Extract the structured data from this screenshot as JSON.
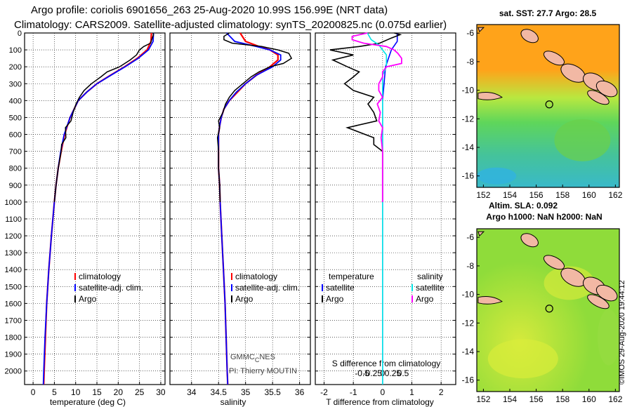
{
  "header": {
    "line1": "Argo profile: coriolis 6901656_263 25-Aug-2020 10.99S 156.99E (NRT data)",
    "line2": "Climatology: CARS2009. Satellite-adjusted climatology: synTS_20200825.nc (0.075d earlier)"
  },
  "credit": "©IMOS 29-Aug-2020 19:44:12",
  "colors": {
    "clim": "#ff0000",
    "sat": "#0000ff",
    "argo": "#000000",
    "sat_sal": "#00e5e5",
    "argo_sal": "#ff00ff"
  },
  "depth_axis": {
    "ticks": [
      0,
      100,
      200,
      300,
      400,
      500,
      600,
      700,
      800,
      900,
      1000,
      1100,
      1200,
      1300,
      1400,
      1500,
      1600,
      1700,
      1800,
      1900,
      2000
    ],
    "tick_labels": [
      "0",
      "100",
      "200",
      "300",
      "400",
      "500",
      "600",
      "700",
      "800",
      "900",
      "1000",
      "1100",
      "1200",
      "1300",
      "1400",
      "1500",
      "1600",
      "1700",
      "1800",
      "1900",
      "2000"
    ],
    "range": [
      0,
      2080
    ]
  },
  "chart_data": [
    {
      "type": "line",
      "id": "temperature",
      "xlabel": "temperature (deg C)",
      "xlim": [
        -2,
        31
      ],
      "xticks": [
        0,
        5,
        10,
        15,
        20,
        25,
        30
      ],
      "xtick_labels": [
        "0",
        "5",
        "10",
        "15",
        "20",
        "25",
        "30"
      ],
      "legend": {
        "placement": "lower-center",
        "entries": [
          "climatology",
          "satellite-adj. clim.",
          "Argo"
        ]
      },
      "series": [
        {
          "name": "climatology",
          "depth": [
            0,
            50,
            100,
            150,
            200,
            250,
            300,
            350,
            400,
            500,
            600,
            700,
            800,
            900,
            1000,
            1200,
            1400,
            1600,
            1800,
            2000,
            2080
          ],
          "values": [
            27.8,
            27.7,
            26.8,
            24.5,
            21.5,
            18.2,
            15.0,
            12.6,
            10.6,
            8.7,
            7.4,
            6.6,
            5.9,
            5.4,
            5.0,
            4.3,
            3.7,
            3.2,
            2.9,
            2.6,
            2.5
          ]
        },
        {
          "name": "satellite-adj. clim.",
          "depth": [
            0,
            50,
            100,
            150,
            200,
            250,
            300,
            350,
            400,
            500,
            600,
            700,
            800,
            900,
            1000,
            1200,
            1400,
            1600,
            1800,
            2000,
            2080
          ],
          "values": [
            28.3,
            28.2,
            27.1,
            24.7,
            21.6,
            18.3,
            15.0,
            12.6,
            10.6,
            8.7,
            7.3,
            6.5,
            5.9,
            5.4,
            5.0,
            4.3,
            3.7,
            3.2,
            2.8,
            2.5,
            2.4
          ]
        },
        {
          "name": "Argo",
          "depth": [
            0,
            10,
            30,
            60,
            80,
            100,
            130,
            160,
            200,
            230,
            260,
            300,
            340,
            380,
            420,
            470,
            520,
            560,
            620,
            660,
            700,
            800,
            900,
            1000
          ],
          "values": [
            28.2,
            28.3,
            28.0,
            27.6,
            26.0,
            25.0,
            24.3,
            22.8,
            20.3,
            17.4,
            15.9,
            13.7,
            12.0,
            10.9,
            10.1,
            9.4,
            8.9,
            7.6,
            7.7,
            6.7,
            6.6,
            5.9,
            5.4,
            5.0
          ]
        }
      ]
    },
    {
      "type": "line",
      "id": "salinity",
      "xlabel": "salinity",
      "xlim": [
        33.6,
        36.2
      ],
      "xticks": [
        34,
        34.5,
        35,
        35.5,
        36
      ],
      "xtick_labels": [
        "34",
        "34.5",
        "35",
        "35.5",
        "36"
      ],
      "legend": {
        "placement": "lower-center",
        "entries": [
          "climatology",
          "satellite-adj. clim.",
          "Argo"
        ]
      },
      "annotation_1": "GMMC",
      "annotation_sub": "C",
      "annotation_2": "NES",
      "annotation_pi": "PI: Thierry MOUTIN",
      "series": [
        {
          "name": "climatology",
          "depth": [
            0,
            50,
            80,
            100,
            130,
            160,
            200,
            250,
            300,
            350,
            400,
            450,
            500,
            550,
            600,
            700,
            800,
            900,
            1000,
            1200,
            1400,
            1600,
            1800,
            2000,
            2080
          ],
          "values": [
            34.9,
            35.0,
            35.25,
            35.45,
            35.6,
            35.6,
            35.45,
            35.2,
            35.0,
            34.85,
            34.7,
            34.6,
            34.55,
            34.52,
            34.5,
            34.5,
            34.5,
            34.52,
            34.53,
            34.56,
            34.59,
            34.62,
            34.64,
            34.66,
            34.67
          ]
        },
        {
          "name": "satellite-adj. clim.",
          "depth": [
            0,
            50,
            80,
            100,
            130,
            160,
            200,
            250,
            300,
            350,
            400,
            450,
            500,
            550,
            600,
            700,
            800,
            900,
            1000,
            1200,
            1400,
            1600,
            1800,
            2000,
            2080
          ],
          "values": [
            34.65,
            34.8,
            35.2,
            35.45,
            35.65,
            35.65,
            35.5,
            35.2,
            35.0,
            34.83,
            34.7,
            34.6,
            34.55,
            34.52,
            34.5,
            34.5,
            34.5,
            34.52,
            34.53,
            34.56,
            34.59,
            34.62,
            34.64,
            34.66,
            34.67
          ]
        },
        {
          "name": "Argo",
          "depth": [
            0,
            20,
            40,
            60,
            80,
            100,
            120,
            150,
            180,
            200,
            230,
            260,
            300,
            340,
            380,
            420,
            470,
            520,
            560,
            620,
            660,
            700,
            800,
            900,
            1000
          ],
          "values": [
            34.7,
            34.6,
            34.6,
            34.75,
            35.3,
            35.6,
            35.8,
            35.85,
            35.7,
            35.45,
            35.25,
            35.1,
            34.95,
            34.8,
            34.7,
            34.63,
            34.58,
            34.5,
            34.52,
            34.48,
            34.49,
            34.5,
            34.5,
            34.52,
            34.53
          ]
        }
      ]
    },
    {
      "type": "line",
      "id": "difference",
      "xlabel": "T difference from climatology",
      "xlim": [
        -2.3,
        2.5
      ],
      "xticks": [
        -2,
        -1,
        0,
        1,
        2
      ],
      "xtick_labels": [
        "-2",
        "-1",
        "0",
        "1",
        "2"
      ],
      "sxlabel": "S difference from climatology",
      "sxticks": [
        -0.5,
        -0.25,
        0,
        0.25,
        0.5
      ],
      "sxtick_labels": [
        "-0.5",
        "-0.25",
        "0",
        "0.25",
        "0.5"
      ],
      "legend_temperature": {
        "title": "temperature",
        "entries": [
          "satellite",
          "Argo"
        ]
      },
      "legend_salinity": {
        "title": "salinity",
        "entries": [
          "satellite",
          "Argo"
        ]
      },
      "series": [
        {
          "name": "T satellite",
          "depth": [
            0,
            50,
            100,
            150,
            200,
            300,
            400,
            600,
            800,
            1000,
            1500,
            2000,
            2080
          ],
          "values": [
            0.5,
            0.5,
            0.3,
            0.2,
            0.1,
            0.05,
            0,
            0,
            0,
            0,
            0,
            0,
            0
          ]
        },
        {
          "name": "T Argo",
          "depth": [
            0,
            10,
            30,
            60,
            80,
            100,
            130,
            160,
            200,
            230,
            260,
            300,
            340,
            380,
            420,
            470,
            520,
            560,
            620,
            660,
            700,
            800,
            900,
            1000
          ],
          "values": [
            0.4,
            0.6,
            0.3,
            -0.1,
            -0.8,
            -1.8,
            -1.0,
            -1.7,
            -1.2,
            -0.8,
            -1.0,
            -1.3,
            -1.0,
            -0.3,
            -0.5,
            -0.3,
            -0.2,
            -1.2,
            -0.3,
            -0.3,
            0,
            0,
            0,
            0
          ]
        },
        {
          "name": "S satellite",
          "depth": [
            0,
            40,
            70,
            100,
            130,
            160,
            200,
            250,
            300,
            400,
            600,
            800,
            1000,
            1500,
            2000,
            2080
          ],
          "values": [
            -0.2,
            -0.15,
            -0.05,
            0,
            0.05,
            0.05,
            0.05,
            0,
            0,
            0,
            0,
            0,
            0,
            0,
            0,
            0
          ]
        },
        {
          "name": "S Argo",
          "depth": [
            0,
            20,
            40,
            60,
            80,
            100,
            120,
            150,
            180,
            200,
            230,
            260,
            300,
            340,
            380,
            420,
            470,
            520,
            560,
            620,
            660,
            700,
            800,
            900,
            1000
          ],
          "values": [
            -0.2,
            -0.4,
            -0.4,
            -0.25,
            0.05,
            0.15,
            0.2,
            0.25,
            0.25,
            0.05,
            0,
            0,
            -0.05,
            -0.05,
            0,
            -0.07,
            -0.03,
            -0.05,
            0,
            -0.02,
            -0.01,
            0,
            0,
            0,
            0
          ]
        }
      ]
    },
    {
      "type": "heatmap",
      "id": "sst_map",
      "title": "sat. SST: 27.7 Argo: 28.5",
      "xticks": [
        152,
        154,
        156,
        158,
        160,
        162
      ],
      "xtick_labels": [
        "152",
        "154",
        "156",
        "158",
        "160",
        "162"
      ],
      "yticks": [
        -6,
        -8,
        -10,
        -12,
        -14,
        -16
      ],
      "ytick_labels": [
        "-6",
        "-8",
        "-10",
        "-12",
        "-14",
        "-16"
      ],
      "xlim": [
        151.5,
        162.3
      ],
      "ylim": [
        -16.8,
        -5.4
      ],
      "profile_location": [
        156.99,
        -10.99
      ]
    },
    {
      "type": "heatmap",
      "id": "sla_map",
      "title": "Altim. SLA: 0.092",
      "subtitle": "Argo h1000: NaN h2000: NaN",
      "xticks": [
        152,
        154,
        156,
        158,
        160,
        162
      ],
      "xtick_labels": [
        "152",
        "154",
        "156",
        "158",
        "160",
        "162"
      ],
      "yticks": [
        -6,
        -8,
        -10,
        -12,
        -14,
        -16
      ],
      "ytick_labels": [
        "-6",
        "-8",
        "-10",
        "-12",
        "-14",
        "-16"
      ],
      "xlim": [
        151.5,
        162.3
      ],
      "ylim": [
        -16.8,
        -5.4
      ],
      "profile_location": [
        156.99,
        -10.99
      ]
    }
  ]
}
